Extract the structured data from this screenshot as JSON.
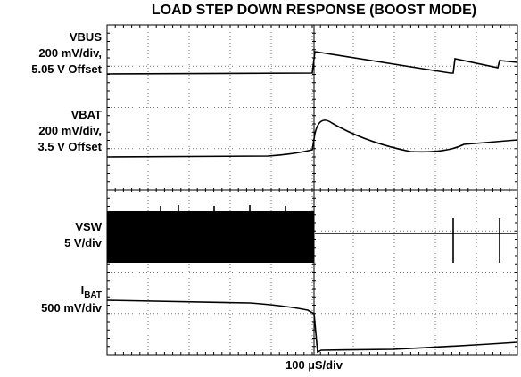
{
  "title": "LOAD STEP DOWN RESPONSE (BOOST MODE)",
  "channels": [
    {
      "name": "VBUS",
      "scale": "200 mV/div,",
      "offset": "5.05 V Offset"
    },
    {
      "name": "VBAT",
      "scale": "200 mV/div,",
      "offset": "3.5 V Offset"
    },
    {
      "name": "VSW",
      "scale": "5 V/div"
    },
    {
      "name": "I",
      "name_sub": "BAT",
      "scale": "500 mV/div"
    }
  ],
  "x_label": "100 µS/div"
}
